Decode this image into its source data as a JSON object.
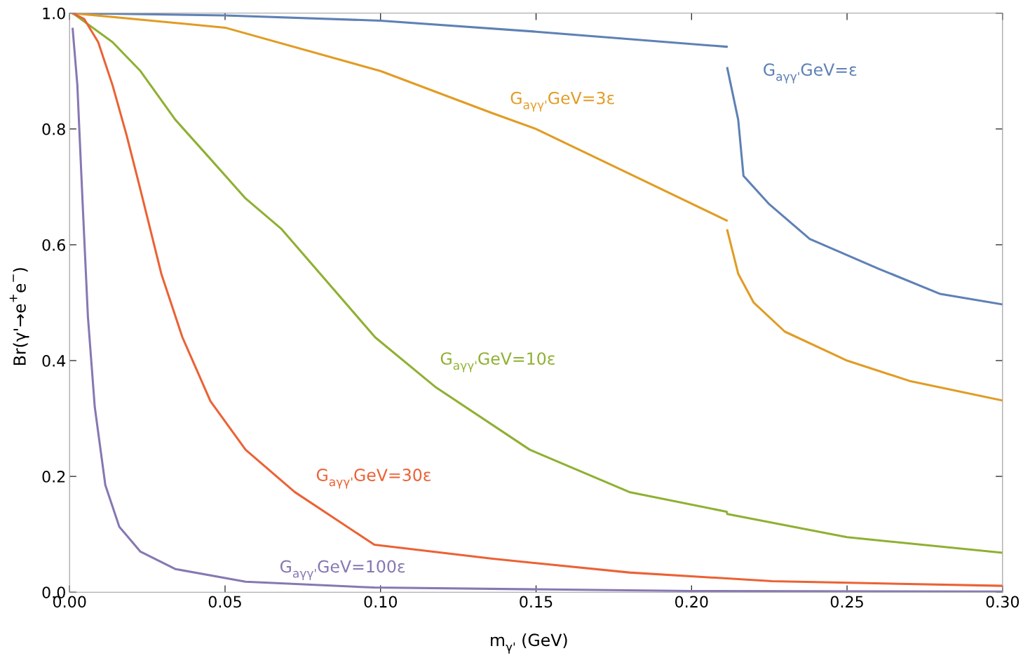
{
  "chart_data": {
    "type": "line",
    "xlabel": "m$_{γ'}$ (GeV)",
    "ylabel": "Br(γ'→e$^{+}$e$^{−}$)",
    "xlim": [
      0,
      0.3
    ],
    "ylim": [
      0,
      1.0
    ],
    "xticks": [
      {
        "value": 0,
        "label": "0.00"
      },
      {
        "value": 0.05,
        "label": "0.05"
      },
      {
        "value": 0.1,
        "label": "0.10"
      },
      {
        "value": 0.15,
        "label": "0.15"
      },
      {
        "value": 0.2,
        "label": "0.20"
      },
      {
        "value": 0.25,
        "label": "0.25"
      },
      {
        "value": 0.3,
        "label": "0.30"
      }
    ],
    "yticks": [
      {
        "value": 0,
        "label": "0.0"
      },
      {
        "value": 0.2,
        "label": "0.2"
      },
      {
        "value": 0.4,
        "label": "0.4"
      },
      {
        "value": 0.6,
        "label": "0.6"
      },
      {
        "value": 0.8,
        "label": "0.8"
      },
      {
        "value": 1.0,
        "label": "1.0"
      }
    ],
    "grid": false,
    "legend": false,
    "marker": "none",
    "line_style": "solid",
    "series": [
      {
        "name": "G$_{aγγ'}$GeV=ε",
        "color": "#5e81b5",
        "x": [
          0.001,
          0.05,
          0.1,
          0.15,
          0.2113,
          0.2114,
          0.2115,
          0.215,
          0.2167,
          0.225,
          0.238,
          0.26,
          0.28,
          0.3
        ],
        "values": [
          1.0,
          0.996,
          0.987,
          0.968,
          0.942,
          null,
          0.905,
          0.816,
          0.719,
          0.67,
          0.61,
          0.559,
          0.515,
          0.497
        ]
      },
      {
        "name": "G$_{aγγ'}$GeV=3ε",
        "color": "#e19c24",
        "x": [
          0.001,
          0.05,
          0.1,
          0.1356,
          0.15,
          0.2113,
          0.2114,
          0.2115,
          0.215,
          0.22,
          0.23,
          0.25,
          0.27,
          0.3
        ],
        "values": [
          1.0,
          0.975,
          0.9,
          0.828,
          0.8,
          0.642,
          null,
          0.625,
          0.55,
          0.5,
          0.45,
          0.4,
          0.365,
          0.331
        ]
      },
      {
        "name": "G$_{aγγ'}$GeV=10ε",
        "color": "#8fb032",
        "x": [
          0.001,
          0.0138,
          0.0228,
          0.034,
          0.045,
          0.0566,
          0.068,
          0.0983,
          0.1175,
          0.148,
          0.18,
          0.2113,
          0.2115,
          0.25,
          0.3
        ],
        "values": [
          1.0,
          0.95,
          0.9,
          0.816,
          0.75,
          0.68,
          0.628,
          0.44,
          0.355,
          0.246,
          0.173,
          0.139,
          0.135,
          0.095,
          0.068
        ]
      },
      {
        "name": "G$_{aγγ'}$GeV=30ε",
        "color": "#eb6235",
        "x": [
          0.001,
          0.0047,
          0.0092,
          0.0138,
          0.0183,
          0.0228,
          0.0295,
          0.0363,
          0.0453,
          0.0566,
          0.0724,
          0.098,
          0.1356,
          0.18,
          0.226,
          0.3
        ],
        "values": [
          1.0,
          0.99,
          0.95,
          0.876,
          0.79,
          0.695,
          0.55,
          0.44,
          0.33,
          0.246,
          0.173,
          0.082,
          0.058,
          0.034,
          0.019,
          0.011
        ]
      },
      {
        "name": "G$_{aγγ'}$GeV=100ε",
        "color": "#8778b3",
        "x": [
          0.001,
          0.0025,
          0.0043,
          0.0059,
          0.0081,
          0.0115,
          0.016,
          0.0228,
          0.034,
          0.0566,
          0.098,
          0.2,
          0.3
        ],
        "values": [
          0.973,
          0.876,
          0.66,
          0.476,
          0.32,
          0.185,
          0.113,
          0.07,
          0.04,
          0.018,
          0.008,
          0.002,
          0.001
        ]
      }
    ]
  }
}
